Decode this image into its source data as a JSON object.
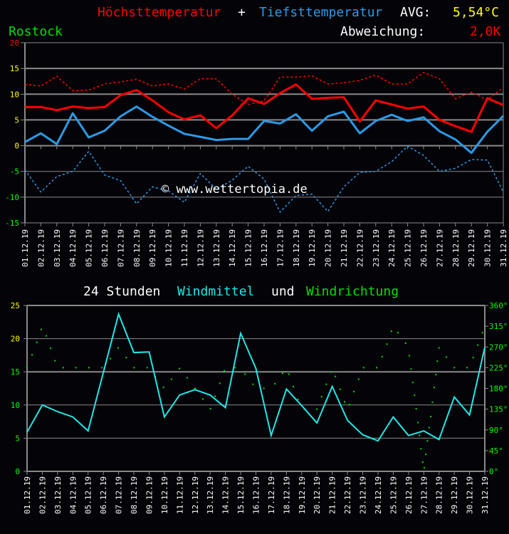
{
  "header": {
    "title_max": "Höchsttemperatur",
    "title_plus": "+",
    "title_min": "Tiefsttemperatur",
    "avg_label": "AVG:",
    "avg_value": "5,54°C",
    "location": "Rostock",
    "deviation_label": "Abweichung:",
    "deviation_value": "2,0K"
  },
  "watermark": "© www.wettertopia.de",
  "wind_title": {
    "part1": "24 Stunden",
    "part2": "Windmittel",
    "part3": "und",
    "part4": "Windrichtung"
  },
  "colors": {
    "max": "#ff0000",
    "min": "#2a9be8",
    "wind": "#20e8e8",
    "direction": "#00e000",
    "yellow": "#ffff00",
    "green": "#00ff00",
    "grid": "#8a8a8a",
    "background": "#040308"
  },
  "chart_data": [
    {
      "type": "line",
      "title": "Höchsttemperatur + Tiefsttemperatur",
      "categories": [
        "01.12.19",
        "02.12.19",
        "03.12.19",
        "04.12.19",
        "05.12.19",
        "06.12.19",
        "07.12.19",
        "08.12.19",
        "09.12.19",
        "10.12.19",
        "11.12.19",
        "12.12.19",
        "13.12.19",
        "14.12.19",
        "15.12.19",
        "16.12.19",
        "17.12.19",
        "18.12.19",
        "19.12.19",
        "20.12.19",
        "21.12.19",
        "22.12.19",
        "23.12.19",
        "24.12.19",
        "25.12.19",
        "26.12.19",
        "27.12.19",
        "28.12.19",
        "29.12.19",
        "30.12.19",
        "31.12.19"
      ],
      "ylim": [
        -15,
        20
      ],
      "yticks": [
        20,
        15,
        10,
        5,
        0,
        -5,
        -10,
        -15
      ],
      "grid": true,
      "series": [
        {
          "style": "solid",
          "color": "#ff0000",
          "values": [
            7.5,
            7.5,
            6.9,
            7.6,
            7.3,
            7.5,
            9.8,
            10.8,
            8.8,
            6.5,
            5.1,
            5.9,
            3.4,
            5.9,
            9.2,
            8.1,
            10.2,
            11.9,
            9.1,
            9.3,
            9.4,
            4.7,
            8.8,
            8.0,
            7.2,
            7.6,
            5.0,
            3.8,
            2.7,
            9.2,
            7.9
          ]
        },
        {
          "style": "solid",
          "color": "#2a9be8",
          "values": [
            0.7,
            2.4,
            0.3,
            6.3,
            1.6,
            2.9,
            5.7,
            7.6,
            5.6,
            3.9,
            2.3,
            1.7,
            1.1,
            1.3,
            1.3,
            4.8,
            4.3,
            6.1,
            2.9,
            5.7,
            6.6,
            2.4,
            4.8,
            6.0,
            4.8,
            5.5,
            2.8,
            1.2,
            -1.4,
            2.7,
            5.8
          ]
        },
        {
          "style": "dashed",
          "color": "#ff0000",
          "values": [
            11.9,
            11.6,
            13.5,
            10.7,
            10.8,
            12.0,
            12.4,
            12.9,
            11.6,
            12.0,
            11.0,
            13.0,
            13.0,
            10.0,
            8.0,
            8.7,
            13.3,
            13.3,
            13.6,
            12.0,
            12.2,
            12.7,
            13.7,
            12.0,
            12.0,
            14.2,
            13.0,
            9.1,
            10.4,
            8.9,
            11.3
          ]
        },
        {
          "style": "dashed",
          "color": "#2a9be8",
          "values": [
            -4.7,
            -9.0,
            -6.0,
            -5.0,
            -1.1,
            -5.7,
            -6.8,
            -11.3,
            -8.0,
            -8.8,
            -11.0,
            -5.4,
            -8.5,
            -6.7,
            -4.0,
            -6.5,
            -12.9,
            -9.7,
            -9.4,
            -12.8,
            -8.0,
            -5.2,
            -5.0,
            -3.1,
            -0.1,
            -1.9,
            -5.0,
            -4.4,
            -2.7,
            -2.8,
            -9.0
          ]
        }
      ]
    },
    {
      "type": "line",
      "title": "24 Stunden Windmittel und Windrichtung",
      "categories": [
        "01.12.19",
        "02.12.19",
        "03.12.19",
        "04.12.19",
        "05.12.19",
        "06.12.19",
        "07.12.19",
        "08.12.19",
        "09.12.19",
        "10.12.19",
        "11.12.19",
        "12.12.19",
        "13.12.19",
        "14.12.19",
        "15.12.19",
        "16.12.19",
        "17.12.19",
        "18.12.19",
        "19.12.19",
        "20.12.19",
        "21.12.19",
        "22.12.19",
        "23.12.19",
        "24.12.19",
        "25.12.19",
        "26.12.19",
        "27.12.19",
        "28.12.19",
        "29.12.19",
        "30.12.19",
        "31.12.19"
      ],
      "ylim": [
        0,
        25
      ],
      "yticks": [
        25,
        20,
        15,
        10,
        5,
        0
      ],
      "y2lim": [
        0,
        360
      ],
      "y2ticks": [
        "0°",
        "45°",
        "90°",
        "135°",
        "180°",
        "225°",
        "270°",
        "315°",
        "360°"
      ],
      "grid": true,
      "wind_speed": [
        5.9,
        10.0,
        9.0,
        8.2,
        6.1,
        14.9,
        23.7,
        17.9,
        18.0,
        8.2,
        11.5,
        12.3,
        11.5,
        9.6,
        20.8,
        15.5,
        5.4,
        12.4,
        9.9,
        7.3,
        12.8,
        7.7,
        5.5,
        4.6,
        8.2,
        5.4,
        6.1,
        4.8,
        11.2,
        8.5,
        18.7
      ],
      "wind_direction": [
        [
          1.0,
          226
        ],
        [
          1.33,
          253
        ],
        [
          1.64,
          280
        ],
        [
          1.93,
          308
        ],
        [
          2.25,
          294
        ],
        [
          2.54,
          267
        ],
        [
          2.83,
          240
        ],
        [
          3.37,
          225
        ],
        [
          4.2,
          225
        ],
        [
          5.06,
          225
        ],
        [
          5.91,
          225
        ],
        [
          6.46,
          245
        ],
        [
          6.97,
          268
        ],
        [
          7.5,
          247
        ],
        [
          8.01,
          225
        ],
        [
          8.87,
          225
        ],
        [
          9.41,
          205
        ],
        [
          9.94,
          182
        ],
        [
          10.46,
          200
        ],
        [
          10.99,
          223
        ],
        [
          11.5,
          203
        ],
        [
          12.01,
          180
        ],
        [
          12.53,
          157
        ],
        [
          13.02,
          136
        ],
        [
          13.32,
          163
        ],
        [
          13.63,
          191
        ],
        [
          13.93,
          218
        ],
        [
          14.63,
          225
        ],
        [
          15.29,
          211
        ],
        [
          15.81,
          189
        ],
        [
          16.52,
          180
        ],
        [
          17.24,
          190
        ],
        [
          17.75,
          213
        ],
        [
          18.16,
          211
        ],
        [
          18.45,
          184
        ],
        [
          18.76,
          156
        ],
        [
          19.18,
          135
        ],
        [
          19.99,
          135
        ],
        [
          20.3,
          162
        ],
        [
          20.61,
          189
        ],
        [
          20.91,
          216
        ],
        [
          21.21,
          206
        ],
        [
          21.52,
          178
        ],
        [
          21.81,
          151
        ],
        [
          22.12,
          145
        ],
        [
          22.42,
          173
        ],
        [
          22.73,
          200
        ],
        [
          23.06,
          225
        ],
        [
          23.91,
          225
        ],
        [
          24.27,
          249
        ],
        [
          24.58,
          276
        ],
        [
          24.88,
          304
        ],
        [
          25.3,
          301
        ],
        [
          25.81,
          278
        ],
        [
          26.06,
          251
        ],
        [
          26.17,
          222
        ],
        [
          26.28,
          193
        ],
        [
          26.39,
          165
        ],
        [
          26.5,
          136
        ],
        [
          26.61,
          106
        ],
        [
          26.71,
          78
        ],
        [
          26.82,
          49
        ],
        [
          26.93,
          20
        ],
        [
          27.03,
          8
        ],
        [
          27.13,
          37
        ],
        [
          27.24,
          66
        ],
        [
          27.35,
          95
        ],
        [
          27.46,
          119
        ],
        [
          27.57,
          150
        ],
        [
          27.68,
          182
        ],
        [
          27.79,
          210
        ],
        [
          27.89,
          239
        ],
        [
          28.0,
          268
        ],
        [
          28.48,
          248
        ],
        [
          29.0,
          225
        ],
        [
          29.84,
          225
        ],
        [
          30.24,
          247
        ],
        [
          30.54,
          274
        ],
        [
          30.85,
          301
        ]
      ]
    }
  ]
}
